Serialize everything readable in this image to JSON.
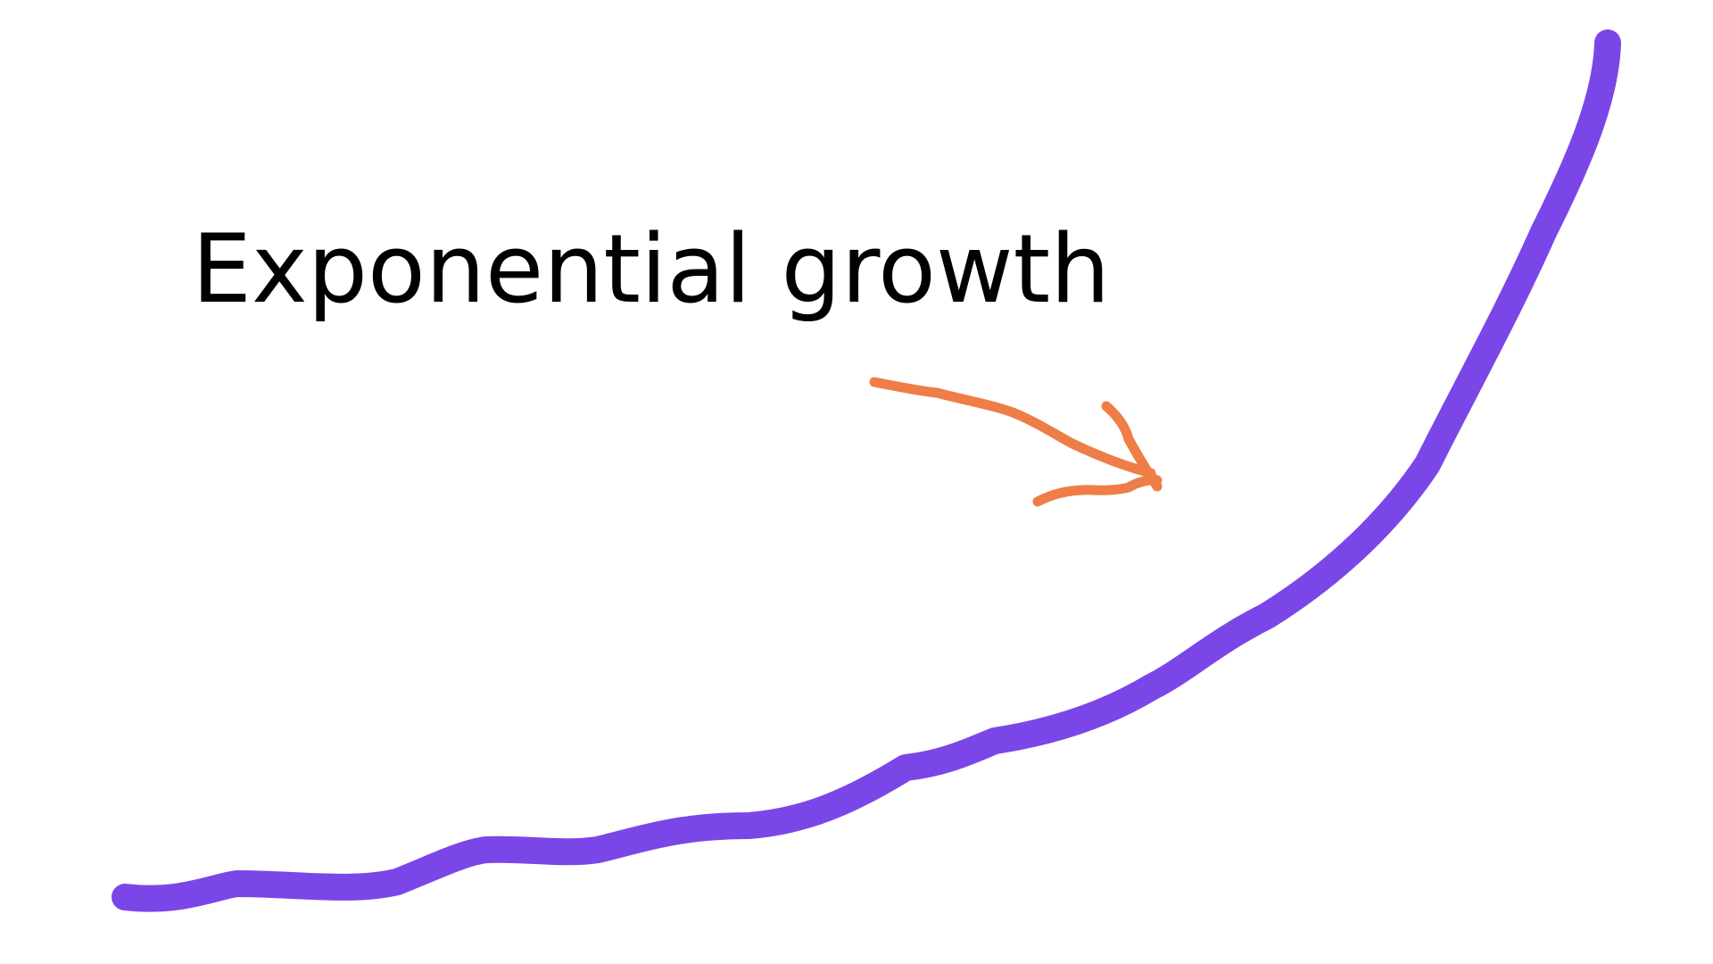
{
  "title": "Exponential growth",
  "colors": {
    "background": "#ffffff",
    "curve": "#7B46E8",
    "arrow": "#EE7D47",
    "text": "#000000"
  },
  "icons": {
    "arrow": "arrow-icon"
  }
}
